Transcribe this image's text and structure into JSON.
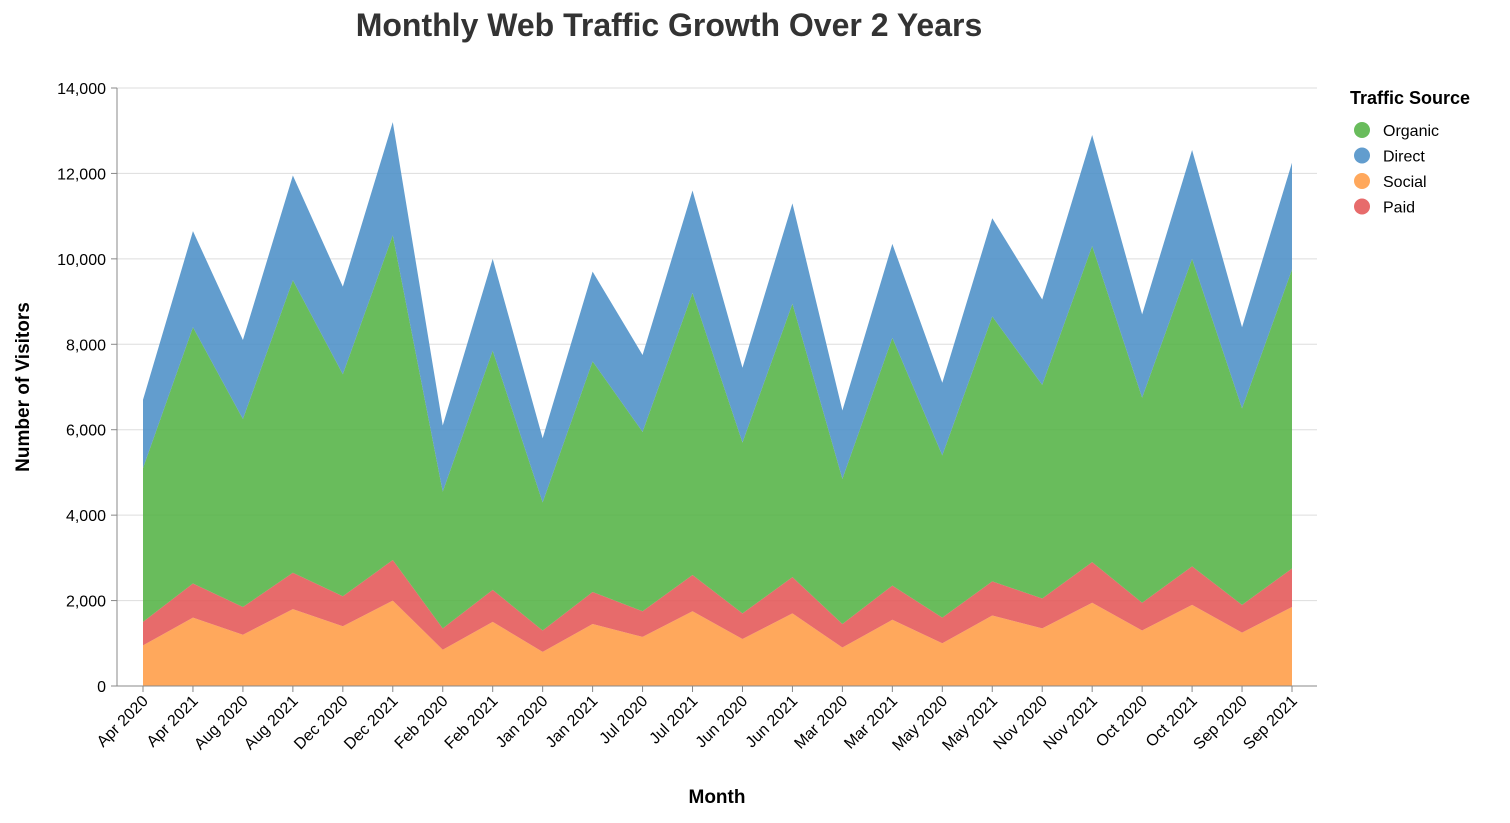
{
  "chart_data": {
    "type": "area",
    "stacked": true,
    "title": "Monthly Web Traffic Growth Over 2 Years",
    "xlabel": "Month",
    "ylabel": "Number of Visitors",
    "ylim": [
      0,
      14000
    ],
    "yticks": [
      0,
      2000,
      4000,
      6000,
      8000,
      10000,
      12000,
      14000
    ],
    "ytick_labels": [
      "0",
      "2,000",
      "4,000",
      "6,000",
      "8,000",
      "10,000",
      "12,000",
      "14,000"
    ],
    "grid": "horizontal",
    "legend": {
      "title": "Traffic Source",
      "placement": "top-right"
    },
    "categories": [
      "Apr 2020",
      "Apr 2021",
      "Aug 2020",
      "Aug 2021",
      "Dec 2020",
      "Dec 2021",
      "Feb 2020",
      "Feb 2021",
      "Jan 2020",
      "Jan 2021",
      "Jul 2020",
      "Jul 2021",
      "Jun 2020",
      "Jun 2021",
      "Mar 2020",
      "Mar 2021",
      "May 2020",
      "May 2021",
      "Nov 2020",
      "Nov 2021",
      "Oct 2020",
      "Oct 2021",
      "Sep 2020",
      "Sep 2021"
    ],
    "series": [
      {
        "name": "Organic",
        "color": "#54b345",
        "values": [
          3600,
          6000,
          4400,
          6850,
          5200,
          7600,
          3200,
          5600,
          3000,
          5400,
          4200,
          6600,
          4000,
          6400,
          3400,
          5800,
          3800,
          6200,
          5000,
          7400,
          4800,
          7200,
          4600,
          7000
        ]
      },
      {
        "name": "Direct",
        "color": "#4c8fc7",
        "values": [
          1600,
          2250,
          1850,
          2450,
          2050,
          2650,
          1550,
          2150,
          1500,
          2100,
          1800,
          2400,
          1750,
          2350,
          1600,
          2200,
          1700,
          2300,
          2000,
          2600,
          1950,
          2550,
          1900,
          2500
        ]
      },
      {
        "name": "Social",
        "color": "#ff9c45",
        "values": [
          950,
          1600,
          1200,
          1800,
          1400,
          2000,
          850,
          1500,
          800,
          1450,
          1150,
          1750,
          1100,
          1700,
          900,
          1550,
          1000,
          1650,
          1350,
          1950,
          1300,
          1900,
          1250,
          1850
        ]
      },
      {
        "name": "Paid",
        "color": "#e45756",
        "values": [
          550,
          800,
          650,
          850,
          700,
          950,
          500,
          750,
          500,
          750,
          600,
          850,
          600,
          850,
          550,
          800,
          600,
          800,
          700,
          950,
          650,
          900,
          650,
          900
        ]
      }
    ],
    "stack_order_bottom_to_top": [
      "Social",
      "Paid",
      "Organic",
      "Direct"
    ],
    "legend_order": [
      "Organic",
      "Direct",
      "Social",
      "Paid"
    ]
  }
}
